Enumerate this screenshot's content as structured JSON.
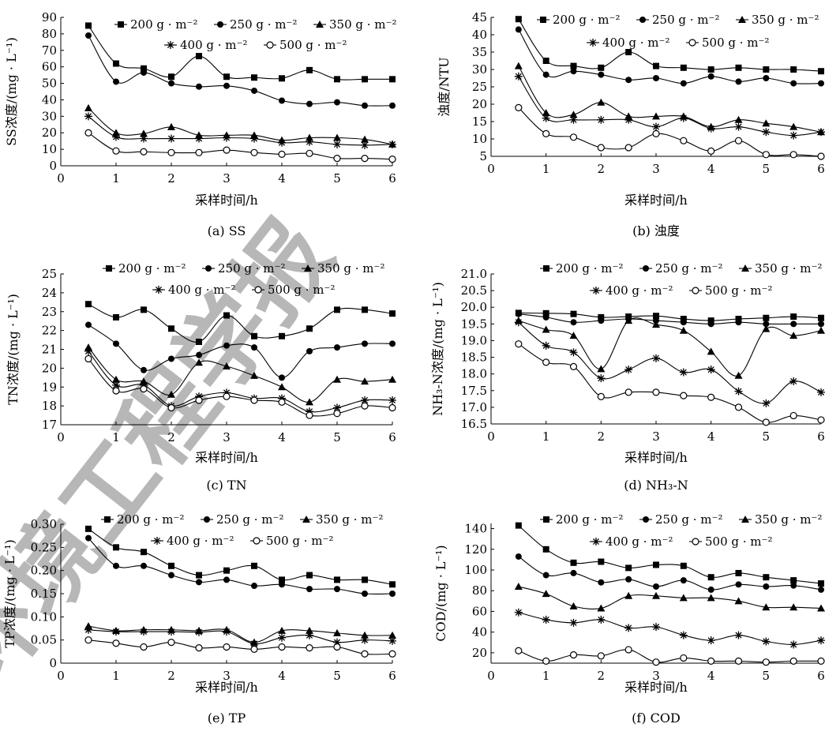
{
  "watermark": "环境工程学报",
  "legend_labels": [
    "200 g · m⁻²",
    "250 g · m⁻²",
    "350 g · m⁻²",
    "400 g · m⁻²",
    "500 g · m⁻²"
  ],
  "chart_data": [
    {
      "type": "line",
      "caption": "(a) SS",
      "xlabel": "采样时间/h",
      "ylabel": "SS浓度/(mg · L⁻¹)",
      "xlim": [
        0,
        6
      ],
      "xticks": [
        0,
        1,
        2,
        3,
        4,
        5,
        6
      ],
      "ylim": [
        0,
        90
      ],
      "yticks": [
        0,
        10,
        20,
        30,
        40,
        50,
        60,
        70,
        80,
        90
      ],
      "ytick_labels": [
        "0",
        "10",
        "20",
        "30",
        "40",
        "50",
        "60",
        "70",
        "80",
        "90"
      ],
      "x": [
        0.5,
        1,
        1.5,
        2,
        2.5,
        3,
        3.5,
        4,
        4.5,
        5,
        5.5,
        6
      ],
      "series": [
        {
          "name": "200 g · m⁻²",
          "marker": "square",
          "values": [
            85,
            62,
            59,
            54,
            66.5,
            54,
            53.5,
            53,
            58,
            52.5,
            52.5,
            52.5
          ]
        },
        {
          "name": "250 g · m⁻²",
          "marker": "circle",
          "values": [
            79,
            51,
            56.5,
            50,
            48,
            48.5,
            45.5,
            39.5,
            37.5,
            38.5,
            36.5,
            36.5
          ]
        },
        {
          "name": "350 g · m⁻²",
          "marker": "triangle",
          "values": [
            35,
            20,
            19.5,
            23.5,
            18.5,
            18.5,
            18.5,
            15.5,
            17,
            17,
            16,
            13
          ]
        },
        {
          "name": "400 g · m⁻²",
          "marker": "star",
          "values": [
            30,
            17.5,
            16.5,
            16.5,
            16.5,
            17,
            16.5,
            14,
            14.5,
            13,
            12.5,
            13
          ]
        },
        {
          "name": "500 g · m⁻²",
          "marker": "open-circle",
          "values": [
            20,
            9,
            8.5,
            8,
            8,
            9.5,
            8,
            7,
            7.5,
            4.5,
            4.5,
            4
          ]
        }
      ]
    },
    {
      "type": "line",
      "caption": "(b) 浊度",
      "xlabel": "采样时间/h",
      "ylabel": "浊度/NTU",
      "xlim": [
        0,
        6
      ],
      "xticks": [
        0,
        1,
        2,
        3,
        4,
        5,
        6
      ],
      "ylim": [
        5,
        45
      ],
      "yticks": [
        5,
        10,
        15,
        20,
        25,
        30,
        35,
        40,
        45
      ],
      "ytick_labels": [
        "5",
        "10",
        "15",
        "20",
        "25",
        "30",
        "35",
        "40",
        "45"
      ],
      "x": [
        0.5,
        1,
        1.5,
        2,
        2.5,
        3,
        3.5,
        4,
        4.5,
        5,
        5.5,
        6
      ],
      "series": [
        {
          "name": "200 g · m⁻²",
          "marker": "square",
          "values": [
            44.5,
            32.5,
            31,
            30.5,
            35,
            31,
            30.5,
            30,
            30.5,
            30,
            30,
            29.5
          ]
        },
        {
          "name": "250 g · m⁻²",
          "marker": "circle",
          "values": [
            41.5,
            28.5,
            29.5,
            28.5,
            27,
            27.5,
            26,
            28,
            26.5,
            27.5,
            26,
            26
          ]
        },
        {
          "name": "350 g · m⁻²",
          "marker": "triangle",
          "values": [
            31,
            17.5,
            17,
            20.5,
            16.5,
            16.5,
            16.5,
            13.5,
            15.5,
            14.5,
            13.5,
            12
          ]
        },
        {
          "name": "400 g · m⁻²",
          "marker": "star",
          "values": [
            28,
            16,
            15.5,
            15.5,
            15.5,
            13.5,
            16,
            13,
            13.5,
            12,
            11,
            12
          ]
        },
        {
          "name": "500 g · m⁻²",
          "marker": "open-circle",
          "values": [
            19,
            11.5,
            10.5,
            7.5,
            7.5,
            11.5,
            9.5,
            6.5,
            9.5,
            5.5,
            5.5,
            5
          ]
        }
      ]
    },
    {
      "type": "line",
      "caption": "(c) TN",
      "xlabel": "采样时间/h",
      "ylabel": "TN浓度/(mg · L⁻¹)",
      "xlim": [
        0,
        6
      ],
      "xticks": [
        0,
        1,
        2,
        3,
        4,
        5,
        6
      ],
      "ylim": [
        17,
        25
      ],
      "yticks": [
        17,
        18,
        19,
        20,
        21,
        22,
        23,
        24,
        25
      ],
      "ytick_labels": [
        "17",
        "18",
        "19",
        "20",
        "21",
        "22",
        "23",
        "24",
        "25"
      ],
      "x": [
        0.5,
        1,
        1.5,
        2,
        2.5,
        3,
        3.5,
        4,
        4.5,
        5,
        5.5,
        6
      ],
      "series": [
        {
          "name": "200 g · m⁻²",
          "marker": "square",
          "values": [
            23.4,
            22.7,
            23.1,
            22.1,
            21.4,
            22.8,
            21.7,
            21.7,
            22.1,
            23.1,
            23.1,
            22.9
          ]
        },
        {
          "name": "250 g · m⁻²",
          "marker": "circle",
          "values": [
            22.3,
            21.3,
            19.9,
            20.5,
            20.7,
            21.2,
            21.1,
            19.5,
            20.9,
            21.1,
            21.3,
            21.3
          ]
        },
        {
          "name": "350 g · m⁻²",
          "marker": "triangle",
          "values": [
            21.1,
            19.4,
            19.3,
            18.6,
            20.3,
            20.1,
            19.6,
            19.0,
            18.2,
            19.4,
            19.3,
            19.4
          ]
        },
        {
          "name": "400 g · m⁻²",
          "marker": "star",
          "values": [
            20.9,
            19.1,
            19.1,
            18.0,
            18.5,
            18.7,
            18.4,
            18.4,
            17.7,
            17.9,
            18.3,
            18.3
          ]
        },
        {
          "name": "500 g · m⁻²",
          "marker": "open-circle",
          "values": [
            20.5,
            18.8,
            18.9,
            17.9,
            18.3,
            18.5,
            18.3,
            18.2,
            17.5,
            17.6,
            18.0,
            17.9
          ]
        }
      ]
    },
    {
      "type": "line",
      "caption": "(d) NH₃-N",
      "xlabel": "采样时间/h",
      "ylabel": "NH₃-N浓度/(mg · L⁻¹)",
      "xlim": [
        0,
        6
      ],
      "xticks": [
        0,
        1,
        2,
        3,
        4,
        5,
        6
      ],
      "ylim": [
        16.5,
        21.0
      ],
      "yticks": [
        16.5,
        17.0,
        17.5,
        18.0,
        18.5,
        19.0,
        19.5,
        20.0,
        20.5,
        21.0
      ],
      "ytick_labels": [
        "16.5",
        "17.0",
        "17.5",
        "18.0",
        "18.5",
        "19.0",
        "19.5",
        "20.0",
        "20.5",
        "21.0"
      ],
      "x": [
        0.5,
        1,
        1.5,
        2,
        2.5,
        3,
        3.5,
        4,
        4.5,
        5,
        5.5,
        6
      ],
      "series": [
        {
          "name": "200 g · m⁻²",
          "marker": "square",
          "values": [
            19.83,
            19.82,
            19.8,
            19.7,
            19.72,
            19.74,
            19.65,
            19.6,
            19.65,
            19.68,
            19.72,
            19.68
          ]
        },
        {
          "name": "250 g · m⁻²",
          "marker": "circle",
          "values": [
            19.8,
            19.7,
            19.55,
            19.6,
            19.65,
            19.6,
            19.55,
            19.5,
            19.55,
            19.5,
            19.5,
            19.5
          ]
        },
        {
          "name": "350 g · m⁻²",
          "marker": "triangle",
          "values": [
            19.6,
            19.33,
            19.15,
            18.15,
            19.6,
            19.48,
            19.3,
            18.67,
            17.95,
            19.35,
            19.15,
            19.3
          ]
        },
        {
          "name": "400 g · m⁻²",
          "marker": "star",
          "values": [
            19.55,
            18.85,
            18.65,
            17.87,
            18.13,
            18.47,
            18.05,
            18.13,
            17.48,
            17.12,
            17.78,
            17.45
          ]
        },
        {
          "name": "500 g · m⁻²",
          "marker": "open-circle",
          "values": [
            18.9,
            18.35,
            18.22,
            17.32,
            17.45,
            17.45,
            17.35,
            17.3,
            17.0,
            16.55,
            16.75,
            16.62
          ]
        }
      ]
    },
    {
      "type": "line",
      "caption": "(e) TP",
      "xlabel": "采样时间/h",
      "ylabel": "TP浓度/(mg · L⁻¹)",
      "xlim": [
        0,
        6
      ],
      "xticks": [
        0,
        1,
        2,
        3,
        4,
        5,
        6
      ],
      "ylim": [
        0,
        0.3
      ],
      "yticks": [
        0,
        0.05,
        0.1,
        0.15,
        0.2,
        0.25,
        0.3
      ],
      "ytick_labels": [
        "0",
        "0.05",
        "0.10",
        "0.15",
        "0.20",
        "0.25",
        "0.30"
      ],
      "x": [
        0.5,
        1,
        1.5,
        2,
        2.5,
        3,
        3.5,
        4,
        4.5,
        5,
        5.5,
        6
      ],
      "series": [
        {
          "name": "200 g · m⁻²",
          "marker": "square",
          "values": [
            0.29,
            0.25,
            0.24,
            0.21,
            0.19,
            0.2,
            0.21,
            0.18,
            0.19,
            0.18,
            0.18,
            0.17
          ]
        },
        {
          "name": "250 g · m⁻²",
          "marker": "circle",
          "values": [
            0.27,
            0.21,
            0.21,
            0.19,
            0.175,
            0.18,
            0.167,
            0.17,
            0.16,
            0.16,
            0.15,
            0.15
          ]
        },
        {
          "name": "350 g · m⁻²",
          "marker": "triangle",
          "values": [
            0.08,
            0.07,
            0.072,
            0.072,
            0.07,
            0.072,
            0.045,
            0.07,
            0.07,
            0.065,
            0.06,
            0.06
          ]
        },
        {
          "name": "400 g · m⁻²",
          "marker": "star",
          "values": [
            0.072,
            0.068,
            0.068,
            0.068,
            0.067,
            0.068,
            0.042,
            0.055,
            0.06,
            0.045,
            0.05,
            0.048
          ]
        },
        {
          "name": "500 g · m⁻²",
          "marker": "open-circle",
          "values": [
            0.05,
            0.043,
            0.035,
            0.045,
            0.033,
            0.035,
            0.03,
            0.035,
            0.033,
            0.035,
            0.02,
            0.02
          ]
        }
      ]
    },
    {
      "type": "line",
      "caption": "(f) COD",
      "xlabel": "采样时间/h",
      "ylabel": "COD/(mg · L⁻¹)",
      "xlim": [
        0,
        6
      ],
      "xticks": [
        0,
        1,
        2,
        3,
        4,
        5,
        6
      ],
      "ylim": [
        10,
        145
      ],
      "yticks": [
        20,
        40,
        60,
        80,
        100,
        120,
        140
      ],
      "ytick_labels": [
        "20",
        "40",
        "60",
        "80",
        "100",
        "120",
        "140"
      ],
      "x": [
        0.5,
        1,
        1.5,
        2,
        2.5,
        3,
        3.5,
        4,
        4.5,
        5,
        5.5,
        6
      ],
      "series": [
        {
          "name": "200 g · m⁻²",
          "marker": "square",
          "values": [
            143,
            120,
            107,
            108,
            102,
            105,
            104,
            93,
            97,
            93,
            90,
            87
          ]
        },
        {
          "name": "250 g · m⁻²",
          "marker": "circle",
          "values": [
            113,
            95,
            97,
            88,
            91,
            84,
            90,
            81,
            86,
            84,
            85,
            81
          ]
        },
        {
          "name": "350 g · m⁻²",
          "marker": "triangle",
          "values": [
            84,
            77,
            65,
            63,
            75,
            75,
            73,
            73,
            70,
            64,
            64,
            63
          ]
        },
        {
          "name": "400 g · m⁻²",
          "marker": "star",
          "values": [
            59,
            52,
            49,
            52,
            44,
            45,
            37,
            32,
            37,
            31,
            28,
            32
          ]
        },
        {
          "name": "500 g · m⁻²",
          "marker": "open-circle",
          "values": [
            22,
            12,
            18,
            17,
            23,
            11,
            15,
            12,
            12,
            11,
            12,
            12
          ]
        }
      ]
    }
  ]
}
